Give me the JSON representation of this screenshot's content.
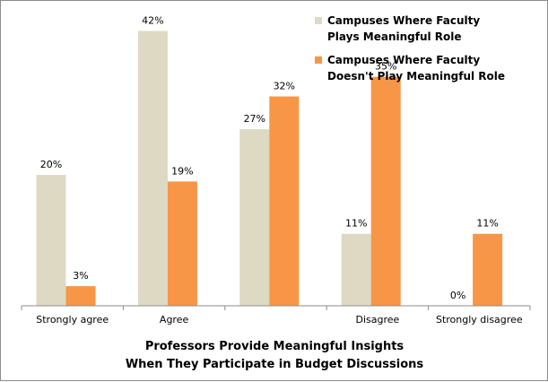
{
  "chart_data": {
    "type": "bar",
    "categories": [
      "Strongly agree",
      "Agree",
      "",
      "Disagree",
      "Strongly disagree"
    ],
    "series": [
      {
        "name_lines": [
          "Campuses Where Faculty",
          "Plays Meaningful Role"
        ],
        "values": [
          20,
          42,
          27,
          11,
          0
        ],
        "labels": [
          "20%",
          "42%",
          "27%",
          "11%",
          "0%"
        ],
        "color": "#ddd9c3"
      },
      {
        "name_lines": [
          "Campuses Where Faculty",
          "Doesn't Play Meaningful Role"
        ],
        "values": [
          3,
          19,
          32,
          35,
          11
        ],
        "labels": [
          "3%",
          "19%",
          "32%",
          "35%",
          "11%"
        ],
        "color": "#f79646"
      }
    ],
    "xlabel_lines": [
      "Professors Provide Meaningful Insights",
      "When They Participate in Budget Discussions"
    ],
    "ylim": [
      0,
      45
    ],
    "grid": false,
    "legend": "top-right"
  }
}
